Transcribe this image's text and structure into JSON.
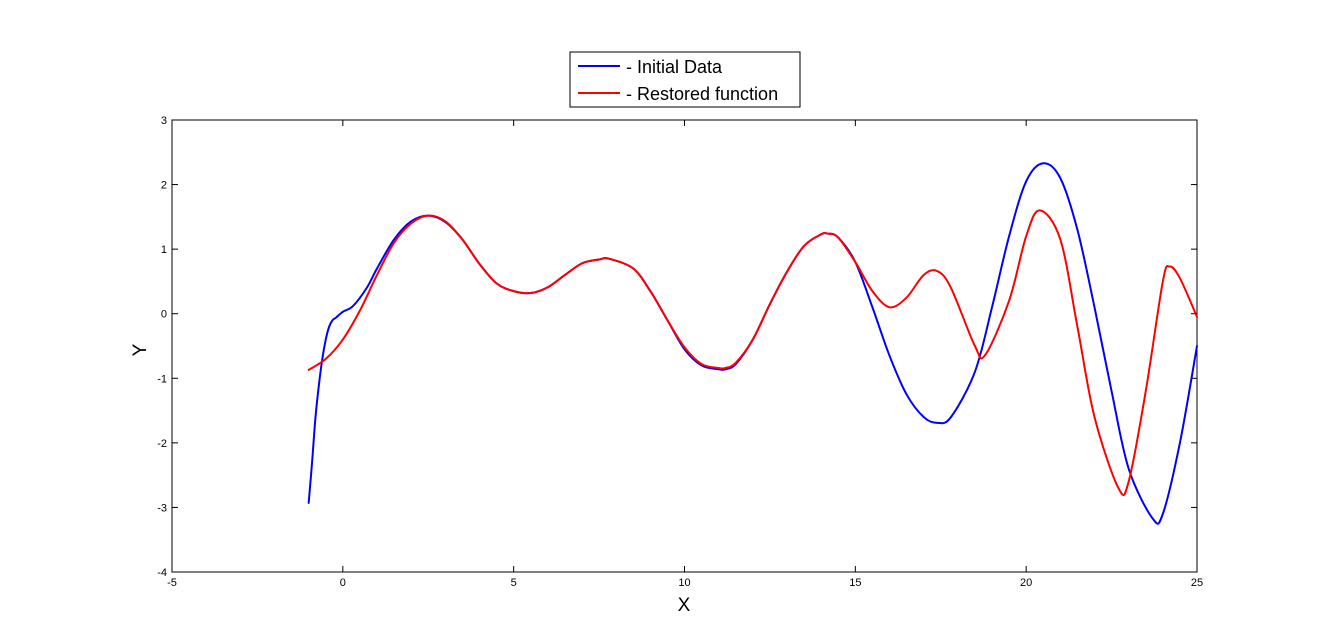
{
  "chart_data": {
    "type": "line",
    "title": "",
    "xlabel": "X",
    "ylabel": "Y",
    "xlim": [
      -5,
      25
    ],
    "ylim": [
      -4,
      3
    ],
    "xticks": [
      -5,
      0,
      5,
      10,
      15,
      20,
      25
    ],
    "yticks": [
      -4,
      -3,
      -2,
      -1,
      0,
      1,
      2,
      3
    ],
    "grid": false,
    "legend_position": "top-center",
    "series": [
      {
        "name": "- Initial Data",
        "color": "#0000ff",
        "x": [
          -1,
          -0.9,
          -0.8,
          -0.7,
          -0.6,
          -0.5,
          -0.4,
          -0.3,
          -0.2,
          0,
          0.3,
          0.7,
          1,
          1.5,
          2,
          2.5,
          3,
          3.5,
          4,
          4.5,
          5,
          5.5,
          6,
          6.5,
          7,
          7.5,
          7.8,
          8.5,
          9,
          9.5,
          10,
          10.5,
          11,
          11.2,
          11.5,
          12,
          12.5,
          13,
          13.5,
          14,
          14.2,
          14.5,
          15,
          15.5,
          16,
          16.5,
          17,
          17.4,
          17.8,
          18.5,
          19,
          19.5,
          20,
          20.5,
          21,
          21.5,
          22,
          22.5,
          23,
          23.7,
          24,
          24.5,
          25
        ],
        "y": [
          -2.93,
          -2.3,
          -1.6,
          -1.1,
          -0.7,
          -0.4,
          -0.2,
          -0.1,
          -0.06,
          0.03,
          0.12,
          0.4,
          0.7,
          1.15,
          1.43,
          1.52,
          1.42,
          1.15,
          0.77,
          0.47,
          0.35,
          0.32,
          0.41,
          0.6,
          0.78,
          0.84,
          0.85,
          0.7,
          0.35,
          -0.1,
          -0.55,
          -0.8,
          -0.86,
          -0.86,
          -0.78,
          -0.4,
          0.15,
          0.65,
          1.05,
          1.23,
          1.24,
          1.18,
          0.8,
          0.1,
          -0.65,
          -1.25,
          -1.6,
          -1.69,
          -1.6,
          -0.9,
          0.1,
          1.2,
          2.05,
          2.33,
          2.1,
          1.3,
          0.1,
          -1.2,
          -2.4,
          -3.17,
          -3.1,
          -2.0,
          -0.5
        ]
      },
      {
        "name": "- Restored function",
        "color": "#ff0000",
        "x": [
          -1,
          -0.5,
          0,
          0.5,
          1,
          1.5,
          2,
          2.5,
          3,
          3.5,
          4,
          4.5,
          5,
          5.5,
          6,
          6.5,
          7,
          7.5,
          7.8,
          8.5,
          9,
          9.5,
          10,
          10.5,
          11,
          11.2,
          11.5,
          12,
          12.5,
          13,
          13.5,
          14,
          14.2,
          14.5,
          15,
          15.5,
          16,
          16.5,
          17,
          17.4,
          17.8,
          18.5,
          18.8,
          19.5,
          20,
          20.4,
          21,
          21.5,
          22,
          22.7,
          23,
          23.5,
          24,
          24.2,
          24.5,
          25
        ],
        "y": [
          -0.87,
          -0.7,
          -0.4,
          0.05,
          0.6,
          1.1,
          1.4,
          1.52,
          1.43,
          1.15,
          0.77,
          0.47,
          0.35,
          0.32,
          0.41,
          0.6,
          0.78,
          0.84,
          0.85,
          0.7,
          0.35,
          -0.1,
          -0.52,
          -0.78,
          -0.84,
          -0.84,
          -0.76,
          -0.4,
          0.15,
          0.65,
          1.05,
          1.23,
          1.24,
          1.18,
          0.8,
          0.35,
          0.1,
          0.25,
          0.6,
          0.66,
          0.4,
          -0.5,
          -0.64,
          0.2,
          1.2,
          1.6,
          1.15,
          -0.2,
          -1.6,
          -2.7,
          -2.6,
          -1.2,
          0.5,
          0.73,
          0.55,
          -0.05
        ]
      }
    ]
  }
}
